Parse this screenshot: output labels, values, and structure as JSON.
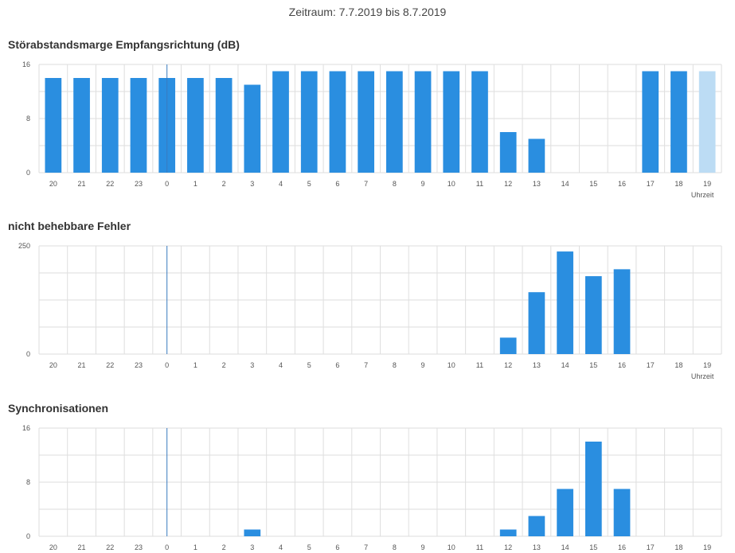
{
  "header": {
    "period_text": "Zeitraum: 7.7.2019 bis 8.7.2019"
  },
  "colors": {
    "bar": "#2a8ee0",
    "bar_projected": "#bcdcf4",
    "grid": "#dedede",
    "day_marker": "#3a7bbf"
  },
  "chart_data": [
    {
      "type": "bar",
      "title": "Störabstandsmarge Empfangsrichtung (dB)",
      "categories": [
        "20",
        "21",
        "22",
        "23",
        "0",
        "1",
        "2",
        "3",
        "4",
        "5",
        "6",
        "7",
        "8",
        "9",
        "10",
        "11",
        "12",
        "13",
        "14",
        "15",
        "16",
        "17",
        "18",
        "19"
      ],
      "values": [
        14,
        14,
        14,
        14,
        14,
        14,
        14,
        13,
        15,
        15,
        15,
        15,
        15,
        15,
        15,
        15,
        6,
        5,
        null,
        null,
        null,
        15,
        15,
        15
      ],
      "highlight_last": true,
      "ylim": [
        0,
        16
      ],
      "yticks": [
        "16",
        "8",
        "0"
      ],
      "xlabel": "Uhrzeit",
      "day_marker_category": "0"
    },
    {
      "type": "bar",
      "title": "nicht behebbare Fehler",
      "categories": [
        "20",
        "21",
        "22",
        "23",
        "0",
        "1",
        "2",
        "3",
        "4",
        "5",
        "6",
        "7",
        "8",
        "9",
        "10",
        "11",
        "12",
        "13",
        "14",
        "15",
        "16",
        "17",
        "18",
        "19"
      ],
      "values": [
        0,
        0,
        0,
        0,
        0,
        0,
        0,
        0,
        0,
        0,
        0,
        0,
        0,
        0,
        0,
        0,
        38,
        143,
        237,
        180,
        196,
        0,
        0,
        0
      ],
      "highlight_last": false,
      "ylim": [
        0,
        250
      ],
      "yticks": [
        "250",
        "0"
      ],
      "xlabel": "Uhrzeit",
      "day_marker_category": "0"
    },
    {
      "type": "bar",
      "title": "Synchronisationen",
      "categories": [
        "20",
        "21",
        "22",
        "23",
        "0",
        "1",
        "2",
        "3",
        "4",
        "5",
        "6",
        "7",
        "8",
        "9",
        "10",
        "11",
        "12",
        "13",
        "14",
        "15",
        "16",
        "17",
        "18",
        "19"
      ],
      "values": [
        0,
        0,
        0,
        0,
        0,
        0,
        0,
        1,
        0,
        0,
        0,
        0,
        0,
        0,
        0,
        0,
        1,
        3,
        7,
        14,
        7,
        0,
        0,
        0
      ],
      "highlight_last": false,
      "ylim": [
        0,
        16
      ],
      "yticks": [
        "16",
        "8",
        "0"
      ],
      "xlabel": "",
      "day_marker_category": "0"
    }
  ]
}
